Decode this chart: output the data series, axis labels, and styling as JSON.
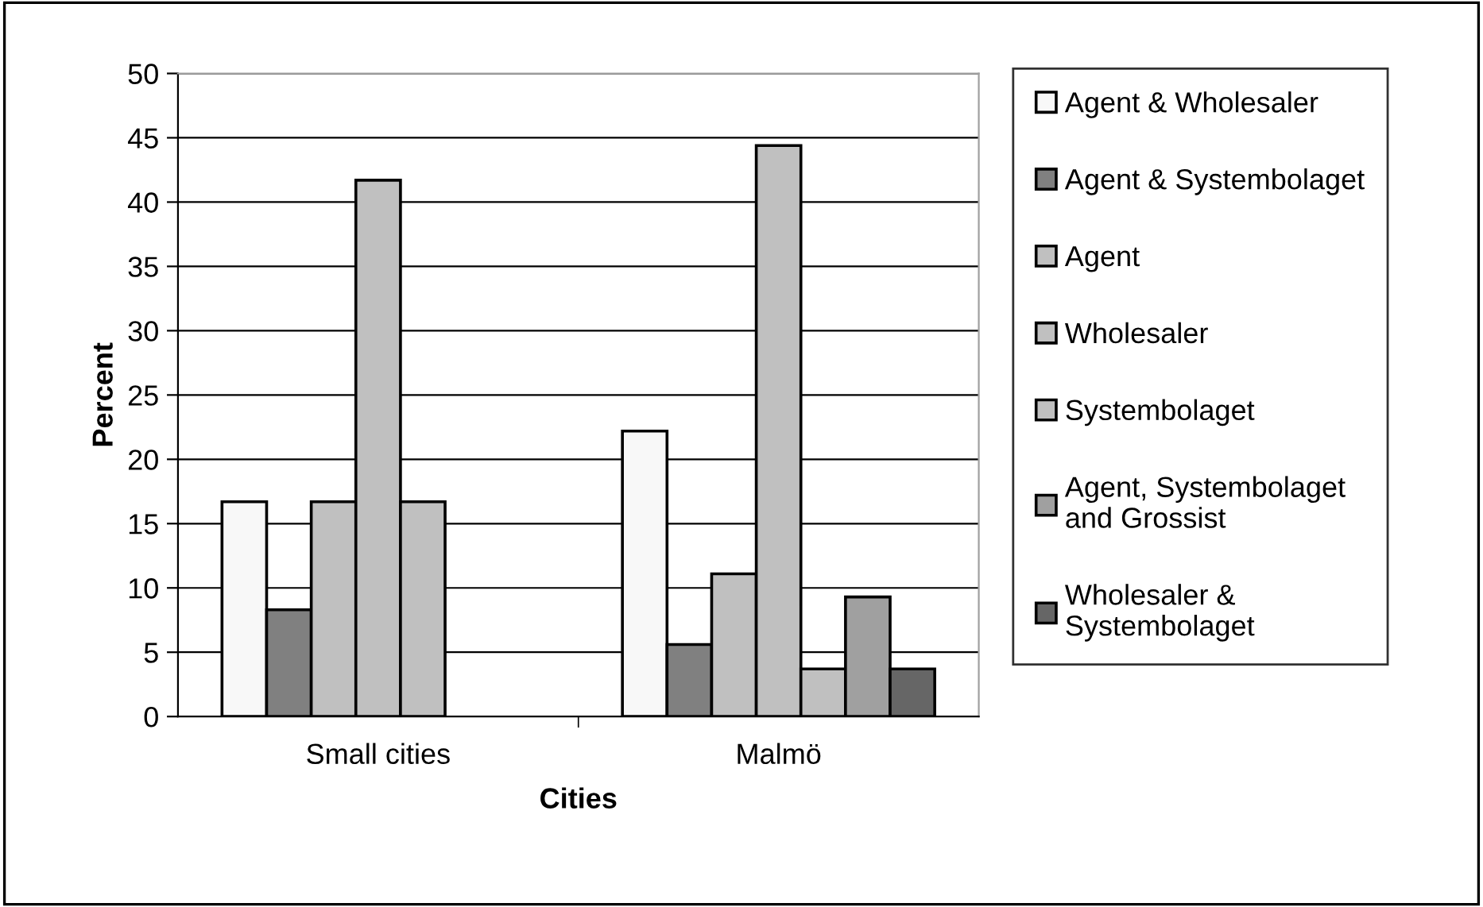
{
  "chart_data": {
    "type": "bar",
    "xlabel": "Cities",
    "ylabel": "Percent",
    "categories": [
      "Small cities",
      "Malmö"
    ],
    "series": [
      {
        "name": "Agent & Wholesaler",
        "color": "#f8f8f8",
        "values": [
          16.7,
          22.2
        ]
      },
      {
        "name": "Agent & Systembolaget",
        "color": "#808080",
        "values": [
          8.3,
          5.6
        ]
      },
      {
        "name": "Agent",
        "color": "#c0c0c0",
        "values": [
          16.7,
          11.1
        ]
      },
      {
        "name": "Wholesaler",
        "color": "#c0c0c0",
        "values": [
          41.7,
          44.4
        ]
      },
      {
        "name": "Systembolaget",
        "color": "#c0c0c0",
        "values": [
          16.7,
          3.7
        ]
      },
      {
        "name": "Agent, Systembolaget\nand Grossist",
        "color": "#a0a0a0",
        "values": [
          null,
          9.3
        ]
      },
      {
        "name": "Wholesaler &\nSystembolaget",
        "color": "#666666",
        "values": [
          null,
          3.7
        ]
      }
    ],
    "ylim": [
      0,
      50
    ],
    "yticks": [
      0,
      5,
      10,
      15,
      20,
      25,
      30,
      35,
      40,
      45,
      50
    ],
    "grid": "y",
    "legend": "right"
  }
}
